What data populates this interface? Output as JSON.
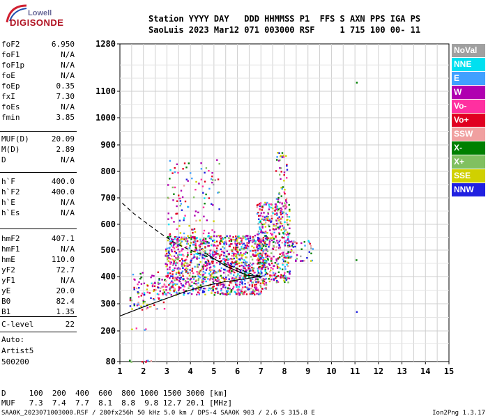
{
  "logo": {
    "top": "Lowell",
    "bottom": "DIGISONDE"
  },
  "header": {
    "line1": "Station YYYY DAY   DDD HHMMSS P1  FFS S AXN PPS IGA PS",
    "line2": "SaoLuis 2023 Mar12 071 003000 RSF     1 715 100 00- 11"
  },
  "parameters": [
    {
      "label": "foF2",
      "value": "6.950"
    },
    {
      "label": "foF1",
      "value": "N/A"
    },
    {
      "label": "foF1p",
      "value": "N/A"
    },
    {
      "label": "foE",
      "value": "N/A"
    },
    {
      "label": "foEp",
      "value": "0.35"
    },
    {
      "label": "fxI",
      "value": "7.30"
    },
    {
      "label": "foEs",
      "value": "N/A"
    },
    {
      "label": "fmin",
      "value": "3.85"
    },
    {
      "label": "MUF(D)",
      "value": "20.09"
    },
    {
      "label": "M(D)",
      "value": "2.89"
    },
    {
      "label": "D",
      "value": "N/A"
    },
    {
      "label": "h`F",
      "value": "400.0"
    },
    {
      "label": "h`F2",
      "value": "400.0"
    },
    {
      "label": "h`E",
      "value": "N/A"
    },
    {
      "label": "h`Es",
      "value": "N/A"
    },
    {
      "label": "hmF2",
      "value": "407.1"
    },
    {
      "label": "hmF1",
      "value": "N/A"
    },
    {
      "label": "hmE",
      "value": "110.0"
    },
    {
      "label": "yF2",
      "value": "72.7"
    },
    {
      "label": "yF1",
      "value": "N/A"
    },
    {
      "label": "yE",
      "value": "20.0"
    },
    {
      "label": "B0",
      "value": "82.4"
    },
    {
      "label": "B1",
      "value": "1.35"
    },
    {
      "label": "C-level",
      "value": "22"
    }
  ],
  "autoscale": {
    "line1": "Auto:",
    "line2": "Artist5",
    "line3": "500200"
  },
  "legend": [
    {
      "label": "NoVal",
      "color": "#a0a0a0"
    },
    {
      "label": "NNE",
      "color": "#00e0f0"
    },
    {
      "label": "E",
      "color": "#40a0ff"
    },
    {
      "label": "W",
      "color": "#b000b0"
    },
    {
      "label": "Vo-",
      "color": "#ff30a0"
    },
    {
      "label": "Vo+",
      "color": "#e00020"
    },
    {
      "label": "SSW",
      "color": "#f0a0a0"
    },
    {
      "label": "X-",
      "color": "#008000"
    },
    {
      "label": "X+",
      "color": "#80c060"
    },
    {
      "label": "SSE",
      "color": "#d0d000"
    },
    {
      "label": "NNW",
      "color": "#2020e0"
    }
  ],
  "muf_table": {
    "d_row": "D     100  200  400  600  800 1000 1500 3000 [km]",
    "muf_row": "MUF   7.3  7.4  7.7  8.1  8.8  9.8 12.7 20.1 [MHz]"
  },
  "footer": "SAA0K_2023071003000.RSF / 280fx256h 50 kHz 5.0 km / DPS-4 SAA0K 903 / 2.6 S 315.8 E",
  "version": "Ion2Png 1.3.17",
  "chart_data": {
    "type": "scatter",
    "title": "",
    "xlabel": "",
    "ylabel": "",
    "xlim": [
      1,
      15
    ],
    "ylim": [
      80,
      1280
    ],
    "x_ticks": [
      1,
      2,
      3,
      4,
      5,
      6,
      7,
      8,
      9,
      10,
      11,
      12,
      13,
      14,
      15
    ],
    "y_ticks": [
      80,
      200,
      300,
      400,
      500,
      600,
      700,
      800,
      900,
      1000,
      1100,
      1280
    ],
    "y_scale": "nonlinear",
    "grid": true,
    "points_schematic": "dense ionogram echo traces from about 1.2 to 9 MHz at 330-880 km virtual height, sporadic echoes near 11 MHz, ground-level echoes near 1.5-2.2 MHz at about 80 km",
    "echo_clusters": [
      {
        "fmin": 1.2,
        "fmax": 2.3,
        "hmin": 80,
        "hmax": 88,
        "density": 0.6
      },
      {
        "fmin": 1.2,
        "fmax": 2.2,
        "hmin": 205,
        "hmax": 215,
        "density": 0.3
      },
      {
        "fmin": 1.4,
        "fmax": 2.9,
        "hmin": 280,
        "hmax": 420,
        "density": 0.35
      },
      {
        "fmin": 2.9,
        "fmax": 7.2,
        "hmin": 335,
        "hmax": 560,
        "density": 0.9
      },
      {
        "fmin": 3.0,
        "fmax": 5.2,
        "hmin": 560,
        "hmax": 850,
        "density": 0.12
      },
      {
        "fmin": 6.8,
        "fmax": 8.2,
        "hmin": 380,
        "hmax": 690,
        "density": 0.7
      },
      {
        "fmin": 7.6,
        "fmax": 8.1,
        "hmin": 580,
        "hmax": 880,
        "density": 0.3
      },
      {
        "fmin": 8.2,
        "fmax": 9.2,
        "hmin": 460,
        "hmax": 540,
        "density": 0.4
      },
      {
        "fmin": 11.0,
        "fmax": 11.05,
        "hmin": 240,
        "hmax": 1180,
        "density": 0.02
      }
    ],
    "curves": [
      {
        "style": "dashed",
        "x": [
          1.1,
          1.6,
          2.2,
          2.8,
          3.4,
          4.0,
          4.6,
          5.3,
          6.0,
          6.6,
          7.0
        ],
        "y": [
          680,
          640,
          600,
          560,
          525,
          500,
          480,
          455,
          430,
          410,
          400
        ]
      },
      {
        "style": "solid",
        "x": [
          1.0,
          1.6,
          2.2,
          3.0,
          3.8,
          4.6,
          5.4,
          6.2,
          6.8,
          7.05
        ],
        "y": [
          255,
          275,
          295,
          320,
          345,
          365,
          380,
          390,
          398,
          400
        ]
      },
      {
        "style": "solid",
        "x": [
          4.6,
          5.5,
          6.4,
          7.0
        ],
        "y": [
          490,
          440,
          405,
          400
        ]
      }
    ]
  }
}
